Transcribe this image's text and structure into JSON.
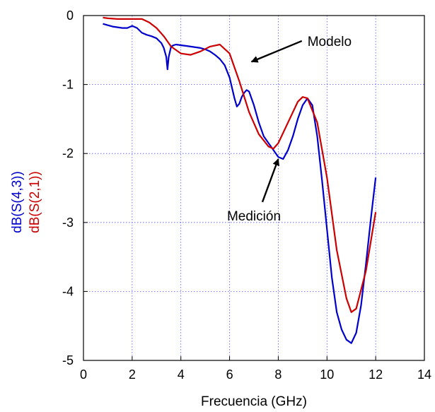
{
  "chart_data": {
    "type": "line",
    "title": "",
    "xlabel": "Frecuencia (GHz)",
    "ylabels": [
      {
        "text": "dB(S(4,3))",
        "color": "#0000cc"
      },
      {
        "text": "dB(S(2,1))",
        "color": "#cc0000"
      }
    ],
    "xlim": [
      0,
      14
    ],
    "ylim": [
      -5,
      0
    ],
    "xticks": [
      0,
      2,
      4,
      6,
      8,
      10,
      12,
      14
    ],
    "yticks": [
      0,
      -1,
      -2,
      -3,
      -4,
      -5
    ],
    "grid": true,
    "series": [
      {
        "name": "Medición",
        "color": "#0000cc",
        "x": [
          0.8,
          1.0,
          1.2,
          1.4,
          1.6,
          1.8,
          2.0,
          2.2,
          2.4,
          2.6,
          2.8,
          3.0,
          3.2,
          3.3,
          3.4,
          3.45,
          3.5,
          3.6,
          3.7,
          3.8,
          4.0,
          4.2,
          4.4,
          4.6,
          4.8,
          5.0,
          5.2,
          5.4,
          5.6,
          5.8,
          6.0,
          6.2,
          6.3,
          6.4,
          6.5,
          6.6,
          6.7,
          6.8,
          7.0,
          7.2,
          7.4,
          7.6,
          7.8,
          8.0,
          8.2,
          8.4,
          8.6,
          8.8,
          9.0,
          9.2,
          9.4,
          9.6,
          9.8,
          10.0,
          10.2,
          10.4,
          10.6,
          10.8,
          11.0,
          11.2,
          11.4,
          11.6,
          11.8,
          12.0
        ],
        "y": [
          -0.12,
          -0.14,
          -0.16,
          -0.17,
          -0.18,
          -0.18,
          -0.15,
          -0.18,
          -0.25,
          -0.28,
          -0.3,
          -0.33,
          -0.4,
          -0.47,
          -0.6,
          -0.78,
          -0.6,
          -0.45,
          -0.43,
          -0.42,
          -0.43,
          -0.44,
          -0.45,
          -0.46,
          -0.47,
          -0.49,
          -0.52,
          -0.57,
          -0.63,
          -0.72,
          -0.9,
          -1.2,
          -1.32,
          -1.28,
          -1.18,
          -1.12,
          -1.08,
          -1.1,
          -1.3,
          -1.55,
          -1.75,
          -1.85,
          -1.95,
          -2.05,
          -2.08,
          -1.95,
          -1.75,
          -1.5,
          -1.3,
          -1.2,
          -1.3,
          -1.75,
          -2.4,
          -3.1,
          -3.8,
          -4.3,
          -4.55,
          -4.7,
          -4.75,
          -4.6,
          -4.2,
          -3.6,
          -2.95,
          -2.35
        ]
      },
      {
        "name": "Modelo",
        "color": "#cc0000",
        "x": [
          0.8,
          1.0,
          1.4,
          2.0,
          2.4,
          2.7,
          3.0,
          3.3,
          3.6,
          4.0,
          4.4,
          4.8,
          5.2,
          5.6,
          6.0,
          6.4,
          6.8,
          7.2,
          7.6,
          7.8,
          8.0,
          8.4,
          8.8,
          9.0,
          9.2,
          9.6,
          10.0,
          10.4,
          10.8,
          11.0,
          11.2,
          11.6,
          12.0
        ],
        "y": [
          -0.03,
          -0.04,
          -0.05,
          -0.05,
          -0.05,
          -0.1,
          -0.18,
          -0.3,
          -0.45,
          -0.55,
          -0.57,
          -0.52,
          -0.45,
          -0.42,
          -0.55,
          -0.95,
          -1.4,
          -1.72,
          -1.9,
          -1.93,
          -1.85,
          -1.55,
          -1.25,
          -1.18,
          -1.2,
          -1.55,
          -2.35,
          -3.4,
          -4.1,
          -4.3,
          -4.25,
          -3.7,
          -2.85
        ]
      }
    ],
    "annotations": [
      {
        "text": "Modelo",
        "x": 9.2,
        "y": -0.44,
        "arrow_to": [
          6.9,
          -0.67
        ]
      },
      {
        "text": "Medición",
        "x": 7.0,
        "y": -2.97,
        "arrow_to": [
          8.0,
          -2.08
        ]
      }
    ]
  }
}
